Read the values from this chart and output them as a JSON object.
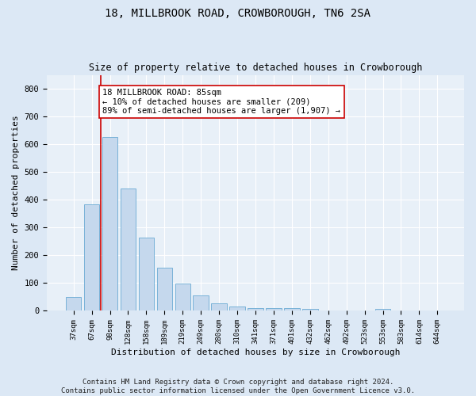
{
  "title": "18, MILLBROOK ROAD, CROWBOROUGH, TN6 2SA",
  "subtitle": "Size of property relative to detached houses in Crowborough",
  "xlabel": "Distribution of detached houses by size in Crowborough",
  "ylabel": "Number of detached properties",
  "categories": [
    "37sqm",
    "67sqm",
    "98sqm",
    "128sqm",
    "158sqm",
    "189sqm",
    "219sqm",
    "249sqm",
    "280sqm",
    "310sqm",
    "341sqm",
    "371sqm",
    "401sqm",
    "432sqm",
    "462sqm",
    "492sqm",
    "523sqm",
    "553sqm",
    "583sqm",
    "614sqm",
    "644sqm"
  ],
  "values": [
    50,
    385,
    625,
    440,
    265,
    155,
    97,
    55,
    28,
    17,
    10,
    11,
    11,
    6,
    0,
    0,
    0,
    8,
    0,
    0,
    0
  ],
  "bar_color": "#c5d8ed",
  "bar_edge_color": "#6aaad4",
  "vline_x": 1.5,
  "vline_color": "#cc0000",
  "annotation_text": "18 MILLBROOK ROAD: 85sqm\n← 10% of detached houses are smaller (209)\n89% of semi-detached houses are larger (1,907) →",
  "annotation_box_color": "#ffffff",
  "annotation_box_edge": "#cc0000",
  "ylim": [
    0,
    850
  ],
  "yticks": [
    0,
    100,
    200,
    300,
    400,
    500,
    600,
    700,
    800
  ],
  "footer": "Contains HM Land Registry data © Crown copyright and database right 2024.\nContains public sector information licensed under the Open Government Licence v3.0.",
  "bg_color": "#dce8f5",
  "plot_bg_color": "#e8f0f8",
  "title_fontsize": 10,
  "subtitle_fontsize": 8.5,
  "xlabel_fontsize": 8,
  "ylabel_fontsize": 8,
  "footer_fontsize": 6.5,
  "annot_fontsize": 7.5
}
